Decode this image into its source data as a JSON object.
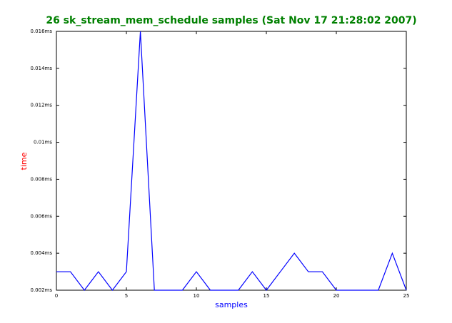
{
  "chart_data": {
    "type": "line",
    "title": "26 sk_stream_mem_schedule samples (Sat Nov 17 21:28:02 2007)",
    "xlabel": "samples",
    "ylabel": "time",
    "x": [
      0,
      1,
      2,
      3,
      4,
      5,
      6,
      7,
      8,
      9,
      10,
      11,
      12,
      13,
      14,
      15,
      16,
      17,
      18,
      19,
      20,
      21,
      22,
      23,
      24,
      25
    ],
    "series": [
      {
        "color": "#0000ff",
        "values": [
          0.003,
          0.003,
          0.002,
          0.003,
          0.002,
          0.003,
          0.016,
          0.002,
          0.002,
          0.002,
          0.003,
          0.002,
          0.002,
          0.002,
          0.003,
          0.002,
          0.003,
          0.004,
          0.003,
          0.003,
          0.002,
          0.002,
          0.002,
          0.002,
          0.004,
          0.002
        ]
      }
    ],
    "xlim": [
      0,
      25
    ],
    "xticks": [
      0,
      5,
      10,
      15,
      20,
      25
    ],
    "ylim": [
      0.002,
      0.016
    ],
    "yticks": [
      {
        "value": 0.002,
        "label": "0.002ms"
      },
      {
        "value": 0.004,
        "label": "0.004ms"
      },
      {
        "value": 0.006,
        "label": "0.006ms"
      },
      {
        "value": 0.008,
        "label": "0.008ms"
      },
      {
        "value": 0.01,
        "label": "0.01ms"
      },
      {
        "value": 0.012,
        "label": "0.012ms"
      },
      {
        "value": 0.014,
        "label": "0.014ms"
      },
      {
        "value": 0.016,
        "label": "0.016ms"
      }
    ]
  }
}
